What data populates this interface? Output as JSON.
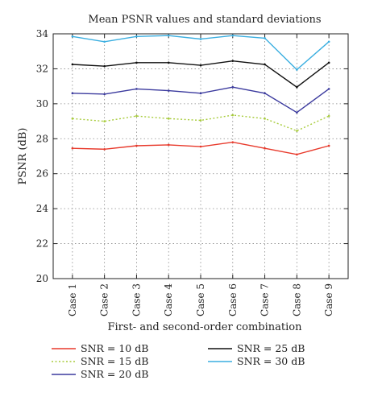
{
  "chart_data": {
    "type": "line",
    "title": "Mean PSNR values and standard deviations",
    "xlabel": "First- and second-order combination",
    "ylabel": "PSNR (dB)",
    "ylim": [
      20,
      34
    ],
    "yticks": [
      20,
      22,
      24,
      26,
      28,
      30,
      32,
      34
    ],
    "categories": [
      "Case 1",
      "Case 2",
      "Case 3",
      "Case 4",
      "Case 5",
      "Case 6",
      "Case 7",
      "Case 8",
      "Case 9"
    ],
    "grid": true,
    "legend_position": "bottom",
    "series": [
      {
        "name": "SNR = 10 dB",
        "color": "#e8392b",
        "dash": "solid",
        "values": [
          27.45,
          27.4,
          27.6,
          27.65,
          27.55,
          27.8,
          27.45,
          27.1,
          27.6
        ]
      },
      {
        "name": "SNR = 15 dB",
        "color": "#a8cc3c",
        "dash": "dotted",
        "values": [
          29.15,
          29.0,
          29.3,
          29.15,
          29.05,
          29.35,
          29.15,
          28.45,
          29.3
        ]
      },
      {
        "name": "SNR = 20 dB",
        "color": "#3b3a9e",
        "dash": "solid",
        "values": [
          30.6,
          30.55,
          30.85,
          30.75,
          30.6,
          30.95,
          30.6,
          29.5,
          30.85
        ]
      },
      {
        "name": "SNR = 25 dB",
        "color": "#111111",
        "dash": "solid",
        "values": [
          32.25,
          32.15,
          32.35,
          32.35,
          32.2,
          32.45,
          32.25,
          30.95,
          32.35
        ]
      },
      {
        "name": "SNR = 30 dB",
        "color": "#3aaee0",
        "dash": "solid",
        "values": [
          33.85,
          33.55,
          33.85,
          33.9,
          33.7,
          33.9,
          33.75,
          31.95,
          33.55
        ]
      }
    ]
  }
}
